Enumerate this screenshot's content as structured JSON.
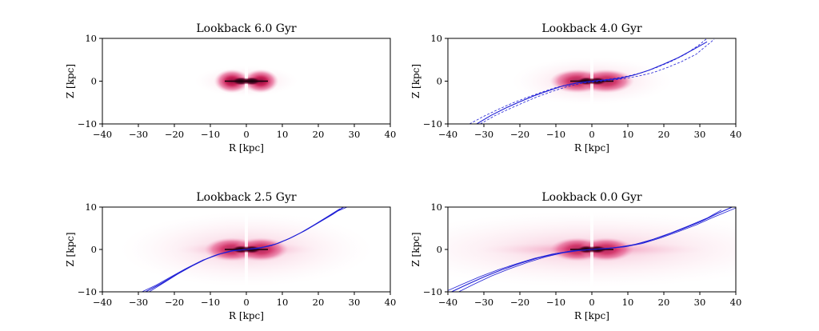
{
  "chart_data": [
    {
      "type": "heatmap",
      "title": "Lookback 6.0 Gyr",
      "xlabel": "R [kpc]",
      "ylabel": "Z [kpc]",
      "xlim": [
        -40,
        40
      ],
      "ylim": [
        -10,
        10
      ],
      "xticks": [
        -40,
        -30,
        -20,
        -10,
        0,
        10,
        20,
        30,
        40
      ],
      "yticks": [
        -10,
        0,
        10
      ],
      "xtick_labels": [
        "−40",
        "−30",
        "−20",
        "−10",
        "0",
        "10",
        "20",
        "30",
        "40"
      ],
      "ytick_labels": [
        "−10",
        "0",
        "10"
      ],
      "density_extent_kpc": 9,
      "warp": null
    },
    {
      "type": "heatmap",
      "title": "Lookback 4.0 Gyr",
      "xlabel": "R [kpc]",
      "ylabel": "Z [kpc]",
      "xlim": [
        -40,
        40
      ],
      "ylim": [
        -10,
        10
      ],
      "xticks": [
        -40,
        -30,
        -20,
        -10,
        0,
        10,
        20,
        30,
        40
      ],
      "yticks": [
        -10,
        0,
        10
      ],
      "xtick_labels": [
        "−40",
        "−30",
        "−20",
        "−10",
        "0",
        "10",
        "20",
        "30",
        "40"
      ],
      "ytick_labels": [
        "−10",
        "0",
        "10"
      ],
      "density_extent_kpc": 14,
      "warp": {
        "color": "#1f1fd6",
        "series": [
          {
            "name": "fit",
            "style": "solid",
            "x": [
              -32,
              -28,
              -24,
              -20,
              -16,
              -12,
              -8,
              -4,
              0,
              4,
              8,
              12,
              16,
              20,
              24,
              28,
              32
            ],
            "y": [
              -10,
              -8.0,
              -6.3,
              -4.8,
              -3.4,
              -2.2,
              -1.1,
              -0.4,
              0,
              0.3,
              0.7,
              1.5,
              2.6,
              4.0,
              5.5,
              7.3,
              9.2
            ]
          },
          {
            "name": "upper",
            "style": "dashed",
            "x": [
              -34,
              -30,
              -26,
              -22,
              -18,
              -14,
              -10,
              -6,
              -2,
              2,
              6,
              10,
              14,
              18,
              22,
              26,
              30,
              32
            ],
            "y": [
              -10,
              -8.2,
              -6.6,
              -5.1,
              -3.8,
              -2.6,
              -1.5,
              -0.7,
              -0.2,
              0.2,
              0.6,
              1.2,
              2.0,
              3.2,
              4.6,
              6.3,
              8.6,
              10
            ]
          },
          {
            "name": "lower",
            "style": "dashed",
            "x": [
              -31,
              -27,
              -23,
              -19,
              -15,
              -11,
              -7,
              -3,
              1,
              5,
              9,
              13,
              17,
              21,
              25,
              29,
              34
            ],
            "y": [
              -10,
              -8.1,
              -6.5,
              -5.0,
              -3.6,
              -2.4,
              -1.3,
              -0.5,
              -0.1,
              0.2,
              0.6,
              1.2,
              2.0,
              3.2,
              4.6,
              6.3,
              9.8
            ]
          }
        ]
      }
    },
    {
      "type": "heatmap",
      "title": "Lookback 2.5 Gyr",
      "xlabel": "R [kpc]",
      "ylabel": "Z [kpc]",
      "xlim": [
        -40,
        40
      ],
      "ylim": [
        -10,
        10
      ],
      "xticks": [
        -40,
        -30,
        -20,
        -10,
        0,
        10,
        20,
        30,
        40
      ],
      "yticks": [
        -10,
        0,
        10
      ],
      "xtick_labels": [
        "−40",
        "−30",
        "−20",
        "−10",
        "0",
        "10",
        "20",
        "30",
        "40"
      ],
      "ytick_labels": [
        "−10",
        "0",
        "10"
      ],
      "density_extent_kpc": 22,
      "warp": {
        "color": "#1f1fd6",
        "series": [
          {
            "name": "fit",
            "style": "solid",
            "x": [
              -28,
              -24,
              -20,
              -16,
              -12,
              -8,
              -4,
              0,
              4,
              8,
              12,
              16,
              20,
              24,
              27
            ],
            "y": [
              -10,
              -8.2,
              -6.2,
              -4.2,
              -2.5,
              -1.2,
              -0.3,
              0,
              0.4,
              1.2,
              2.6,
              4.3,
              6.3,
              8.3,
              10
            ]
          },
          {
            "name": "upper",
            "style": "solid",
            "x": [
              -27,
              -23,
              -19,
              -15,
              -11,
              -7,
              -3,
              1,
              5,
              9,
              13,
              17,
              21,
              25,
              28
            ],
            "y": [
              -10,
              -7.9,
              -5.8,
              -3.9,
              -2.2,
              -1.0,
              -0.2,
              0.1,
              0.6,
              1.5,
              3.0,
              4.8,
              6.9,
              8.9,
              10
            ]
          },
          {
            "name": "lower",
            "style": "solid",
            "x": [
              -29,
              -25,
              -21,
              -17,
              -13,
              -9,
              -5,
              -1,
              3,
              7,
              11,
              15,
              19,
              23,
              26
            ],
            "y": [
              -10,
              -8.4,
              -6.5,
              -4.6,
              -2.9,
              -1.5,
              -0.5,
              -0.1,
              0.2,
              0.9,
              2.2,
              3.9,
              5.9,
              8.0,
              9.6
            ]
          }
        ]
      }
    },
    {
      "type": "heatmap",
      "title": "Lookback 0.0 Gyr",
      "xlabel": "R [kpc]",
      "ylabel": "Z [kpc]",
      "xlim": [
        -40,
        40
      ],
      "ylim": [
        -10,
        10
      ],
      "xticks": [
        -40,
        -30,
        -20,
        -10,
        0,
        10,
        20,
        30,
        40
      ],
      "yticks": [
        -10,
        0,
        10
      ],
      "xtick_labels": [
        "−40",
        "−30",
        "−20",
        "−10",
        "0",
        "10",
        "20",
        "30",
        "40"
      ],
      "ytick_labels": [
        "−10",
        "0",
        "10"
      ],
      "density_extent_kpc": 36,
      "warp": {
        "color": "#1f1fd6",
        "series": [
          {
            "name": "fit",
            "style": "solid",
            "x": [
              -39,
              -35,
              -30,
              -25,
              -20,
              -15,
              -10,
              -5,
              0,
              5,
              10,
              15,
              20,
              25,
              30,
              35,
              39
            ],
            "y": [
              -10,
              -8.4,
              -6.5,
              -4.8,
              -3.3,
              -2.0,
              -1.0,
              -0.3,
              0,
              0.3,
              0.8,
              1.8,
              3.2,
              4.8,
              6.5,
              8.5,
              10
            ]
          },
          {
            "name": "upper",
            "style": "solid",
            "x": [
              -37,
              -33,
              -28,
              -23,
              -18,
              -13,
              -8,
              -3,
              2,
              7,
              12,
              17,
              22,
              27,
              32,
              36
            ],
            "y": [
              -10,
              -8.3,
              -6.3,
              -4.6,
              -3.1,
              -1.8,
              -0.8,
              -0.2,
              0.1,
              0.5,
              1.2,
              2.4,
              3.9,
              5.6,
              7.4,
              9.3
            ]
          },
          {
            "name": "lower",
            "style": "solid",
            "x": [
              -40,
              -36,
              -31,
              -26,
              -21,
              -16,
              -11,
              -6,
              -1,
              4,
              9,
              14,
              19,
              24,
              29,
              34,
              40
            ],
            "y": [
              -9.7,
              -8.2,
              -6.4,
              -4.8,
              -3.4,
              -2.1,
              -1.1,
              -0.4,
              -0.1,
              0.2,
              0.6,
              1.4,
              2.7,
              4.2,
              5.8,
              7.7,
              9.8
            ]
          }
        ]
      }
    }
  ]
}
